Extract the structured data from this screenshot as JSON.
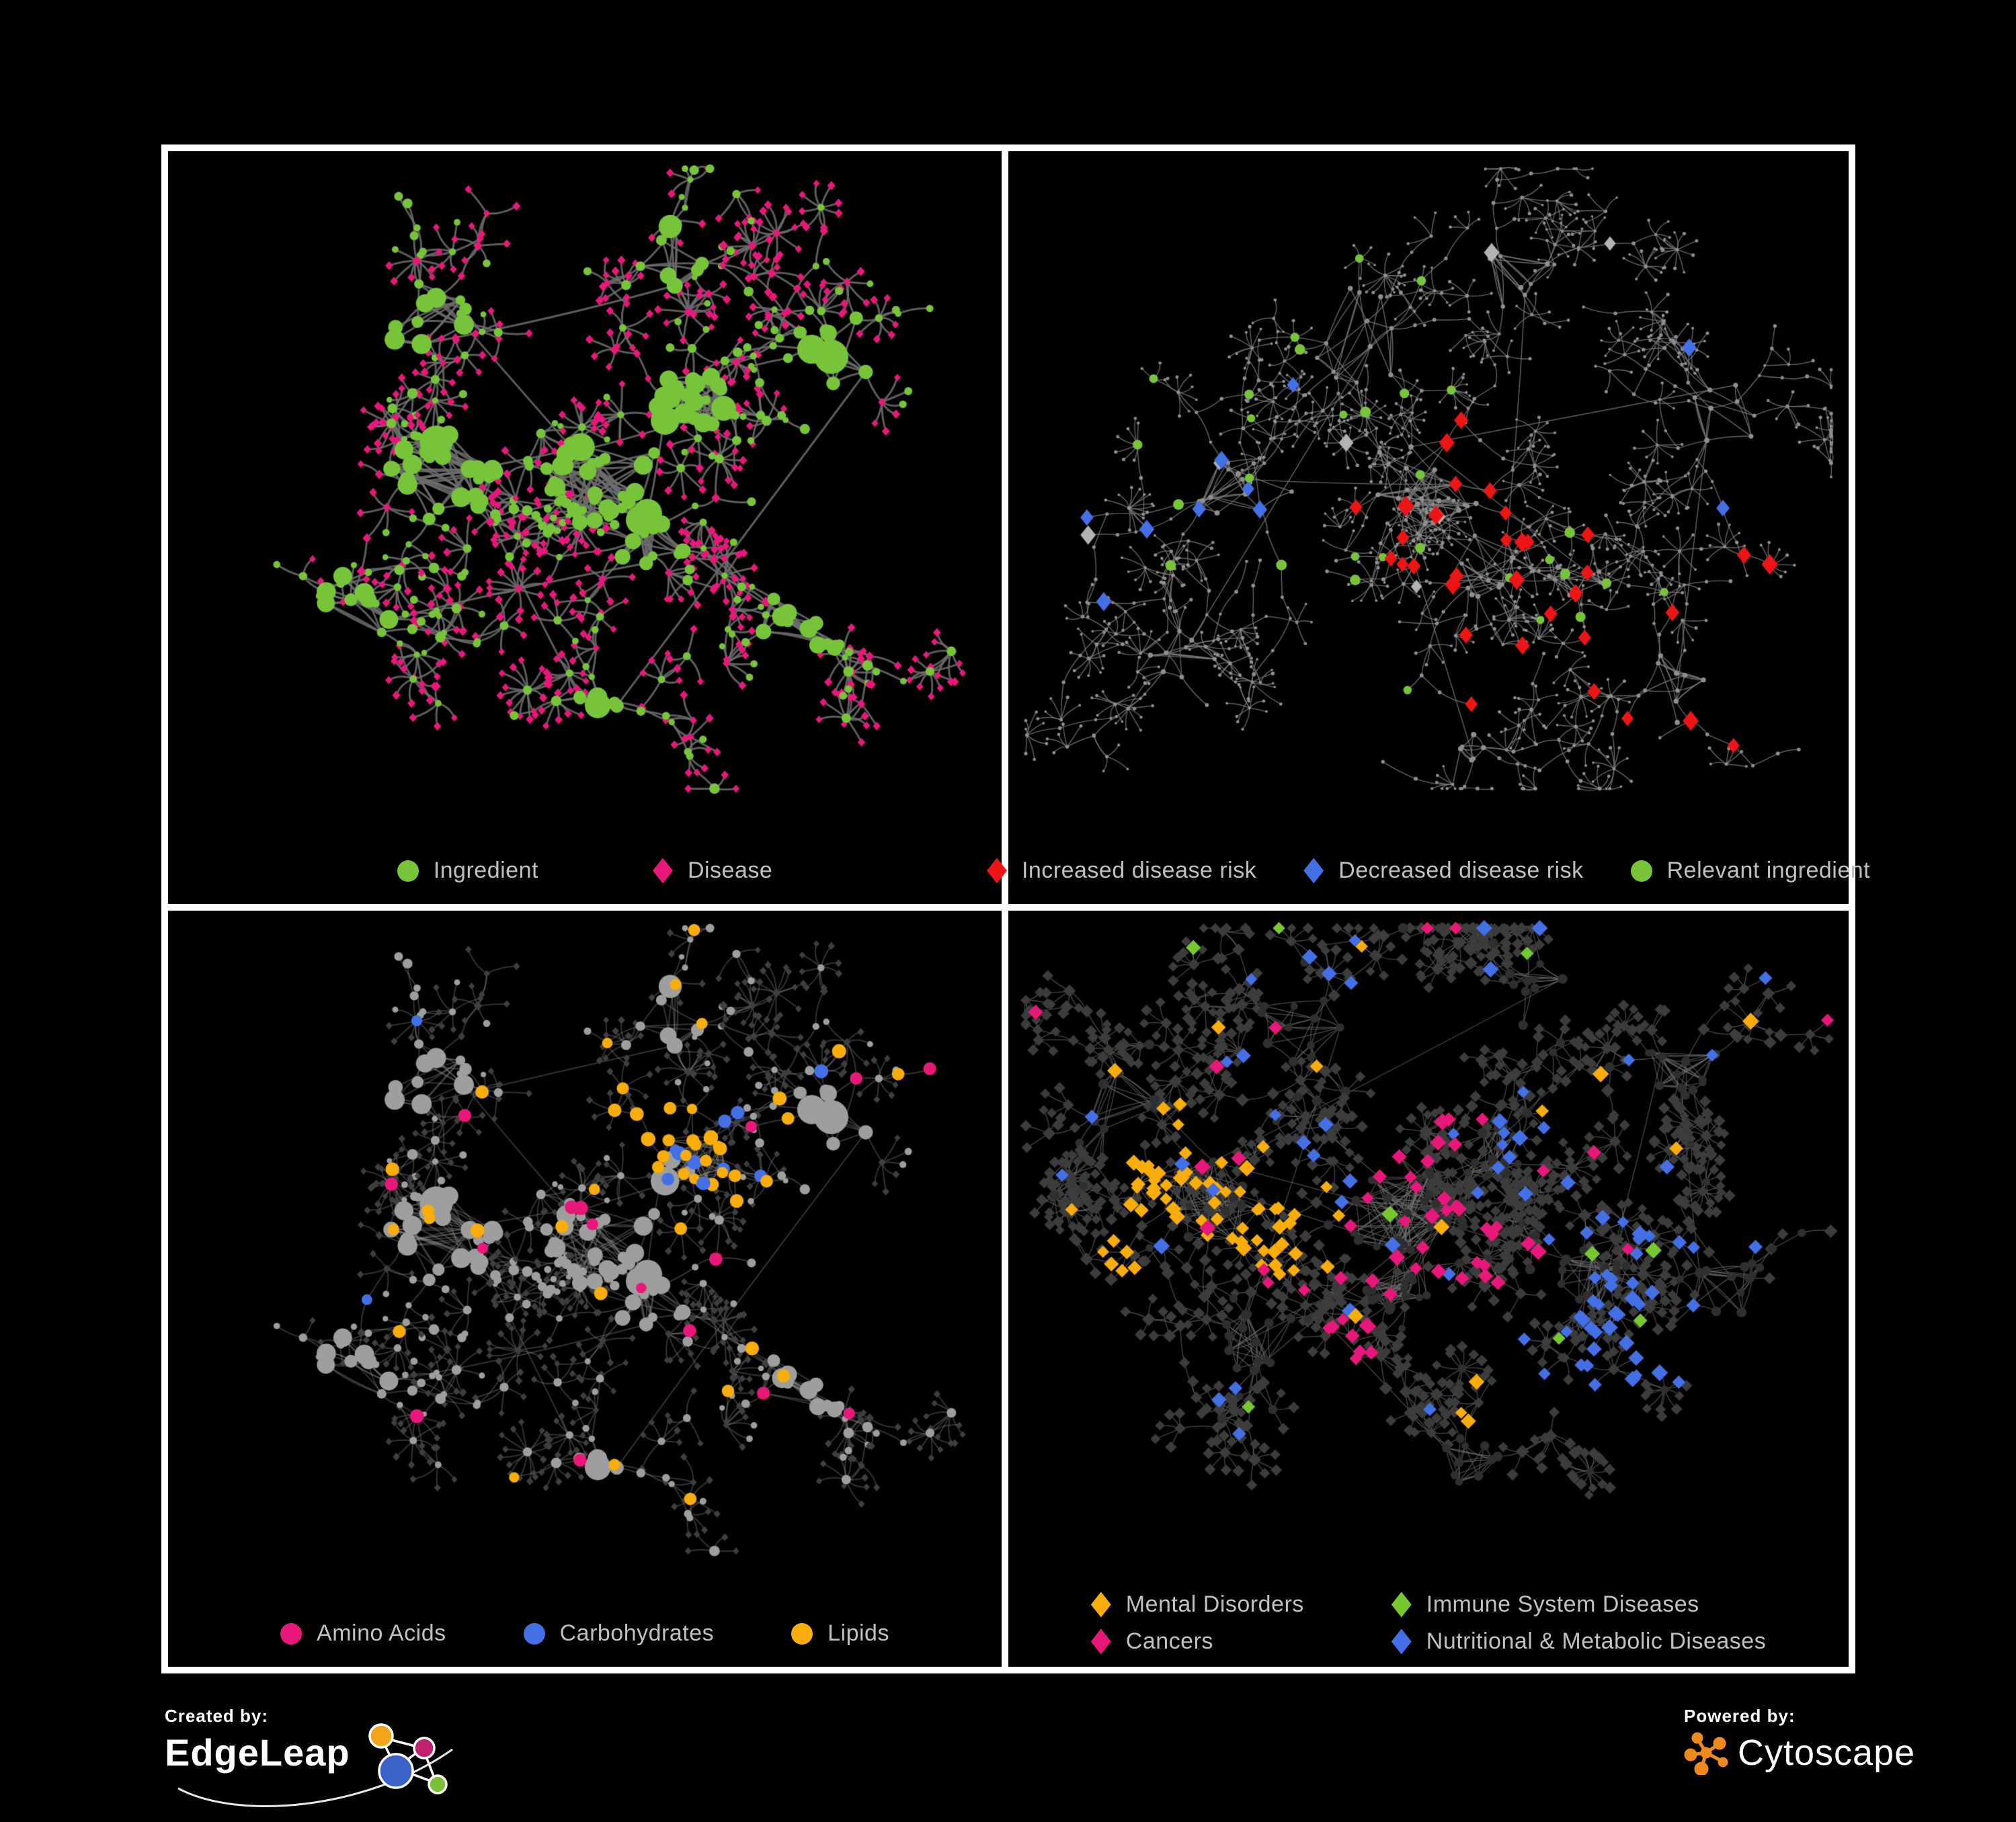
{
  "page": {
    "background": "#000000",
    "panel_border": "#ffffff",
    "legend_text_color": "#c0c0c0"
  },
  "footer": {
    "created_by_label": "Created by:",
    "created_by_name": "EdgeLeap",
    "powered_by_label": "Powered by:",
    "powered_by_name": "Cytoscape",
    "edgeleap_logo_colors": [
      "#f2a51b",
      "#c0206e",
      "#3a62c9",
      "#7ac138"
    ],
    "cytoscape_logo_color": "#ef8b1d"
  },
  "chart_data": [
    {
      "type": "network",
      "name": "ingredient-disease-network",
      "legend": [
        {
          "label": "Ingredient",
          "shape": "circle",
          "color": "#77c43a"
        },
        {
          "label": "Disease",
          "shape": "diamond",
          "color": "#e8187b"
        }
      ],
      "diamond_w": 0.9,
      "layout": {
        "seed": 1137,
        "branches": 75,
        "branch_len": 3,
        "step": 42,
        "leaf_radius": 34,
        "star_min": 3,
        "star_var": 6,
        "mid_star_prob": 0.15,
        "end_star_prob": 0.75,
        "fork_prob": 0.3,
        "web": 1.5,
        "height_frac": 0.87,
        "clusters": [
          {
            "x": 0.33,
            "y": 0.5,
            "r": 0.065,
            "hubs": 26
          },
          {
            "x": 0.52,
            "y": 0.5,
            "r": 0.075,
            "hubs": 30
          },
          {
            "x": 0.63,
            "y": 0.38,
            "r": 0.045,
            "hubs": 26
          },
          {
            "x": 0.58,
            "y": 0.6,
            "r": 0.04,
            "hubs": 12
          },
          {
            "x": 0.52,
            "y": 0.84,
            "r": 0.03,
            "hubs": 6
          },
          {
            "x": 0.8,
            "y": 0.3,
            "r": 0.055,
            "hubs": 10
          },
          {
            "x": 0.76,
            "y": 0.72,
            "r": 0.055,
            "hubs": 12
          },
          {
            "x": 0.3,
            "y": 0.24,
            "r": 0.06,
            "hubs": 10
          },
          {
            "x": 0.6,
            "y": 0.16,
            "r": 0.05,
            "hubs": 8
          },
          {
            "x": 0.22,
            "y": 0.7,
            "r": 0.05,
            "hubs": 8
          }
        ]
      },
      "edge": {
        "color": "#6d6d6d",
        "width": 3,
        "alpha": 0.85,
        "curve": 9
      },
      "roles": {
        "hub": {
          "shape": "circle",
          "color": "#77c43a",
          "rmin": 7,
          "rmax": 15,
          "big_prob": 0.08,
          "big_size": 20
        },
        "chain": {
          "shape": "circle",
          "color": "#77c43a",
          "rmin": 4.5,
          "rmax": 8,
          "alt_prob": 0.3,
          "alt_shape": "diamond",
          "alt_color": "#e8187b",
          "alt_size": 6.5
        },
        "leaf": {
          "shape": "diamond",
          "color": "#e8187b",
          "rmin": 5.5,
          "rmax": 7,
          "alt_prob": 0.12,
          "alt_shape": "circle",
          "alt_color": "#77c43a",
          "alt_size": 5
        }
      },
      "highlights": []
    },
    {
      "type": "network",
      "name": "disease-risk-network",
      "legend": [
        {
          "label": "Increased disease risk",
          "shape": "diamond",
          "color": "#ed1515"
        },
        {
          "label": "Decreased disease risk",
          "shape": "diamond",
          "color": "#4370e4"
        },
        {
          "label": "Relevant ingredient",
          "shape": "circle",
          "color": "#77c43a"
        }
      ],
      "diamond_w": 0.8,
      "layout": {
        "seed": 2024,
        "branches": 105,
        "branch_len": 4,
        "step": 40,
        "leaf_radius": 28,
        "star_min": 3,
        "star_var": 5,
        "mid_star_prob": 0.12,
        "end_star_prob": 0.6,
        "fork_prob": 0.45,
        "web": 1.1,
        "height_frac": 0.87,
        "clusters": [
          {
            "x": 0.28,
            "y": 0.52,
            "r": 0.06,
            "hubs": 18
          },
          {
            "x": 0.5,
            "y": 0.5,
            "r": 0.07,
            "hubs": 26
          },
          {
            "x": 0.56,
            "y": 0.63,
            "r": 0.05,
            "hubs": 14
          },
          {
            "x": 0.68,
            "y": 0.64,
            "r": 0.04,
            "hubs": 10
          },
          {
            "x": 0.42,
            "y": 0.28,
            "r": 0.07,
            "hubs": 12
          },
          {
            "x": 0.6,
            "y": 0.2,
            "r": 0.05,
            "hubs": 8
          },
          {
            "x": 0.86,
            "y": 0.4,
            "r": 0.05,
            "hubs": 8
          },
          {
            "x": 0.79,
            "y": 0.82,
            "r": 0.05,
            "hubs": 10
          },
          {
            "x": 0.55,
            "y": 0.9,
            "r": 0.03,
            "hubs": 6
          },
          {
            "x": 0.2,
            "y": 0.76,
            "r": 0.05,
            "hubs": 8
          }
        ]
      },
      "edge": {
        "color": "#7d7d7d",
        "width": 1.4,
        "alpha": 0.8,
        "curve": 6
      },
      "roles": {
        "hub": {
          "shape": "circle",
          "color": "#8f8f8f",
          "rmin": 3,
          "rmax": 4
        },
        "chain": {
          "shape": "circle",
          "color": "#8f8f8f",
          "rmin": 2.2,
          "rmax": 3
        },
        "leaf": {
          "shape": "circle",
          "color": "#8f8f8f",
          "rmin": 1.8,
          "rmax": 2.6
        }
      },
      "highlights": [
        {
          "count": 34,
          "clusters": [
            1,
            2,
            3,
            7
          ],
          "roles": [
            "hub",
            "chain"
          ],
          "shape": "diamond",
          "color": "#ed1515",
          "size": 13
        },
        {
          "count": 8,
          "clusters": [
            0
          ],
          "roles": [
            "hub",
            "chain"
          ],
          "shape": "diamond",
          "color": "#4370e4",
          "size": 12
        },
        {
          "count": 2,
          "clusters": [
            6
          ],
          "roles": [
            "hub",
            "chain"
          ],
          "shape": "diamond",
          "color": "#4370e4",
          "size": 12
        },
        {
          "count": 7,
          "clusters": [
            0,
            1,
            2,
            5
          ],
          "roles": [
            "hub",
            "chain"
          ],
          "shape": "diamond",
          "color": "#b3b3b3",
          "size": 12
        },
        {
          "count": 30,
          "clusters": [
            0,
            1,
            2,
            3,
            4
          ],
          "roles": [
            "hub",
            "chain"
          ],
          "shape": "circle",
          "color": "#77c43a",
          "size": 7
        }
      ]
    },
    {
      "type": "network",
      "name": "nutrient-class-network",
      "legend": [
        {
          "label": "Amino Acids",
          "shape": "circle",
          "color": "#e8187b"
        },
        {
          "label": "Carbohydrates",
          "shape": "circle",
          "color": "#4370e4"
        },
        {
          "label": "Lipids",
          "shape": "circle",
          "color": "#f8ad0a"
        }
      ],
      "diamond_w": 0.9,
      "layout": {
        "seed": 1137,
        "branches": 75,
        "branch_len": 3,
        "step": 42,
        "leaf_radius": 34,
        "star_min": 3,
        "star_var": 6,
        "mid_star_prob": 0.15,
        "end_star_prob": 0.75,
        "fork_prob": 0.3,
        "web": 1.5,
        "height_frac": 0.87,
        "clusters": [
          {
            "x": 0.33,
            "y": 0.5,
            "r": 0.065,
            "hubs": 26
          },
          {
            "x": 0.52,
            "y": 0.5,
            "r": 0.075,
            "hubs": 30
          },
          {
            "x": 0.63,
            "y": 0.38,
            "r": 0.045,
            "hubs": 26
          },
          {
            "x": 0.58,
            "y": 0.6,
            "r": 0.04,
            "hubs": 12
          },
          {
            "x": 0.52,
            "y": 0.84,
            "r": 0.03,
            "hubs": 6
          },
          {
            "x": 0.8,
            "y": 0.3,
            "r": 0.055,
            "hubs": 10
          },
          {
            "x": 0.76,
            "y": 0.72,
            "r": 0.055,
            "hubs": 12
          },
          {
            "x": 0.3,
            "y": 0.24,
            "r": 0.06,
            "hubs": 10
          },
          {
            "x": 0.6,
            "y": 0.16,
            "r": 0.05,
            "hubs": 8
          },
          {
            "x": 0.22,
            "y": 0.7,
            "r": 0.05,
            "hubs": 8
          }
        ]
      },
      "edge": {
        "color": "#9a9a9a",
        "width": 2,
        "alpha": 0.33,
        "curve": 9
      },
      "roles": {
        "hub": {
          "shape": "circle",
          "color": "#9e9e9e",
          "rmin": 7,
          "rmax": 15,
          "big_prob": 0.08,
          "big_size": 20
        },
        "chain": {
          "shape": "circle",
          "color": "#9e9e9e",
          "rmin": 4.5,
          "rmax": 8,
          "alt_prob": 0.3,
          "alt_shape": "diamond",
          "alt_color": "#3f3f3f",
          "alt_size": 6
        },
        "leaf": {
          "shape": "diamond",
          "color": "#3f3f3f",
          "rmin": 5,
          "rmax": 6,
          "alt_prob": 0.12,
          "alt_shape": "circle",
          "alt_color": "#9e9e9e",
          "alt_size": 4.5
        }
      },
      "highlights": [
        {
          "count": 26,
          "clusters": [
            2
          ],
          "roles": [
            "hub",
            "chain"
          ],
          "shape": "circle",
          "color": "#f8ad0a",
          "size": 9
        },
        {
          "count": 7,
          "clusters": [
            2
          ],
          "roles": [
            "hub",
            "chain"
          ],
          "shape": "circle",
          "color": "#4370e4",
          "size": 9
        },
        {
          "count": 24,
          "clusters": null,
          "roles": [
            "hub",
            "chain"
          ],
          "shape": "circle",
          "color": "#f8ad0a",
          "size": 9
        },
        {
          "count": 16,
          "clusters": null,
          "roles": [
            "hub",
            "chain"
          ],
          "shape": "circle",
          "color": "#e8187b",
          "size": 9
        },
        {
          "count": 5,
          "clusters": null,
          "roles": [
            "hub",
            "chain"
          ],
          "shape": "circle",
          "color": "#4370e4",
          "size": 9
        }
      ]
    },
    {
      "type": "network",
      "name": "disease-class-network",
      "legend": [
        {
          "label": "Mental Disorders",
          "shape": "diamond",
          "color": "#f8ad0a"
        },
        {
          "label": "Immune System Diseases",
          "shape": "diamond",
          "color": "#76c82f"
        },
        {
          "label": "Cancers",
          "shape": "diamond",
          "color": "#e8187b"
        },
        {
          "label": "Nutritional & Metabolic Diseases",
          "shape": "diamond",
          "color": "#4370e4"
        }
      ],
      "diamond_w": 1,
      "layout": {
        "seed": 907,
        "branches": 115,
        "branch_len": 3,
        "step": 40,
        "leaf_radius": 30,
        "star_min": 3,
        "star_var": 6,
        "mid_star_prob": 0.16,
        "end_star_prob": 0.7,
        "fork_prob": 0.35,
        "web": 1.8,
        "height_frac": 0.84,
        "clusters": [
          {
            "x": 0.24,
            "y": 0.46,
            "r": 0.06,
            "hubs": 30
          },
          {
            "x": 0.47,
            "y": 0.47,
            "r": 0.075,
            "hubs": 40
          },
          {
            "x": 0.57,
            "y": 0.38,
            "r": 0.04,
            "hubs": 16
          },
          {
            "x": 0.47,
            "y": 0.58,
            "r": 0.05,
            "hubs": 20
          },
          {
            "x": 0.7,
            "y": 0.57,
            "r": 0.045,
            "hubs": 18
          },
          {
            "x": 0.3,
            "y": 0.68,
            "r": 0.05,
            "hubs": 14
          },
          {
            "x": 0.8,
            "y": 0.24,
            "r": 0.055,
            "hubs": 14
          },
          {
            "x": 0.86,
            "y": 0.6,
            "r": 0.05,
            "hubs": 12
          },
          {
            "x": 0.55,
            "y": 0.86,
            "r": 0.04,
            "hubs": 10
          },
          {
            "x": 0.35,
            "y": 0.18,
            "r": 0.055,
            "hubs": 12
          },
          {
            "x": 0.63,
            "y": 0.13,
            "r": 0.05,
            "hubs": 10
          },
          {
            "x": 0.14,
            "y": 0.3,
            "r": 0.05,
            "hubs": 8
          }
        ]
      },
      "edge": {
        "color": "#6f6f6f",
        "width": 1.3,
        "alpha": 0.65,
        "curve": 6
      },
      "roles": {
        "hub": {
          "shape": "circle",
          "color": "#2f2f2f",
          "rmin": 5.5,
          "rmax": 7.5
        },
        "chain": {
          "shape": "diamond",
          "color": "#3c3c3c",
          "rmin": 8,
          "rmax": 10,
          "alt_prob": 0.15,
          "alt_shape": "circle",
          "alt_color": "#2f2f2f",
          "alt_size": 6
        },
        "leaf": {
          "shape": "diamond",
          "color": "#3c3c3c",
          "rmin": 7,
          "rmax": 9
        }
      },
      "highlights": [
        {
          "count": 62,
          "clusters": [
            0
          ],
          "roles": null,
          "shape": "diamond",
          "color": "#f8ad0a",
          "size": 10.5
        },
        {
          "count": 16,
          "clusters": null,
          "roles": null,
          "shape": "diamond",
          "color": "#f8ad0a",
          "size": 10.5
        },
        {
          "count": 46,
          "clusters": [
            3,
            1
          ],
          "roles": null,
          "shape": "diamond",
          "color": "#e8187b",
          "size": 10.5
        },
        {
          "count": 14,
          "clusters": null,
          "roles": null,
          "shape": "diamond",
          "color": "#e8187b",
          "size": 10.5
        },
        {
          "count": 40,
          "clusters": [
            4
          ],
          "roles": null,
          "shape": "diamond",
          "color": "#4370e4",
          "size": 10.5
        },
        {
          "count": 46,
          "clusters": null,
          "roles": null,
          "shape": "diamond",
          "color": "#4370e4",
          "size": 10.5
        },
        {
          "count": 9,
          "clusters": null,
          "roles": null,
          "shape": "diamond",
          "color": "#76c82f",
          "size": 10.5
        }
      ]
    }
  ]
}
